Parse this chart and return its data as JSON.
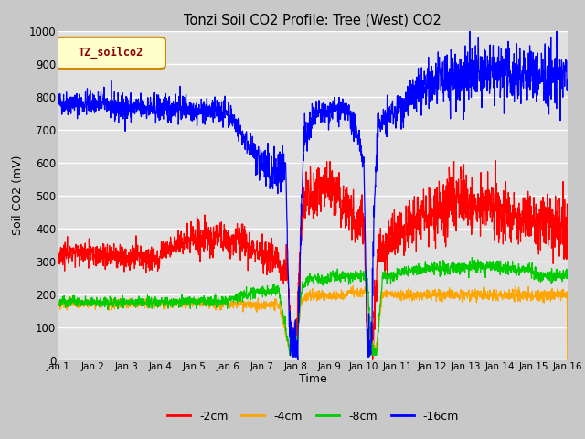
{
  "title": "Tonzi Soil CO2 Profile: Tree (West) CO2",
  "xlabel": "Time",
  "ylabel": "Soil CO2 (mV)",
  "ylim": [
    0,
    1000
  ],
  "xlim": [
    0,
    15
  ],
  "xtick_labels": [
    "Jan 1",
    "Jan 2",
    "Jan 3",
    "Jan 4",
    "Jan 5",
    "Jan 6",
    "Jan 7",
    "Jan 8",
    "Jan 9",
    "Jan 10",
    "Jan 11",
    "Jan 12",
    "Jan 13",
    "Jan 14",
    "Jan 15",
    "Jan 16"
  ],
  "legend_label": "TZ_soilco2",
  "series_labels": [
    "-2cm",
    "-4cm",
    "-8cm",
    "-16cm"
  ],
  "series_colors": [
    "#ff0000",
    "#ffa500",
    "#00cc00",
    "#0000ff"
  ],
  "fig_bg_color": "#c8c8c8",
  "plot_bg_color": "#e0e0e0",
  "n_points": 2000,
  "seed": 42
}
